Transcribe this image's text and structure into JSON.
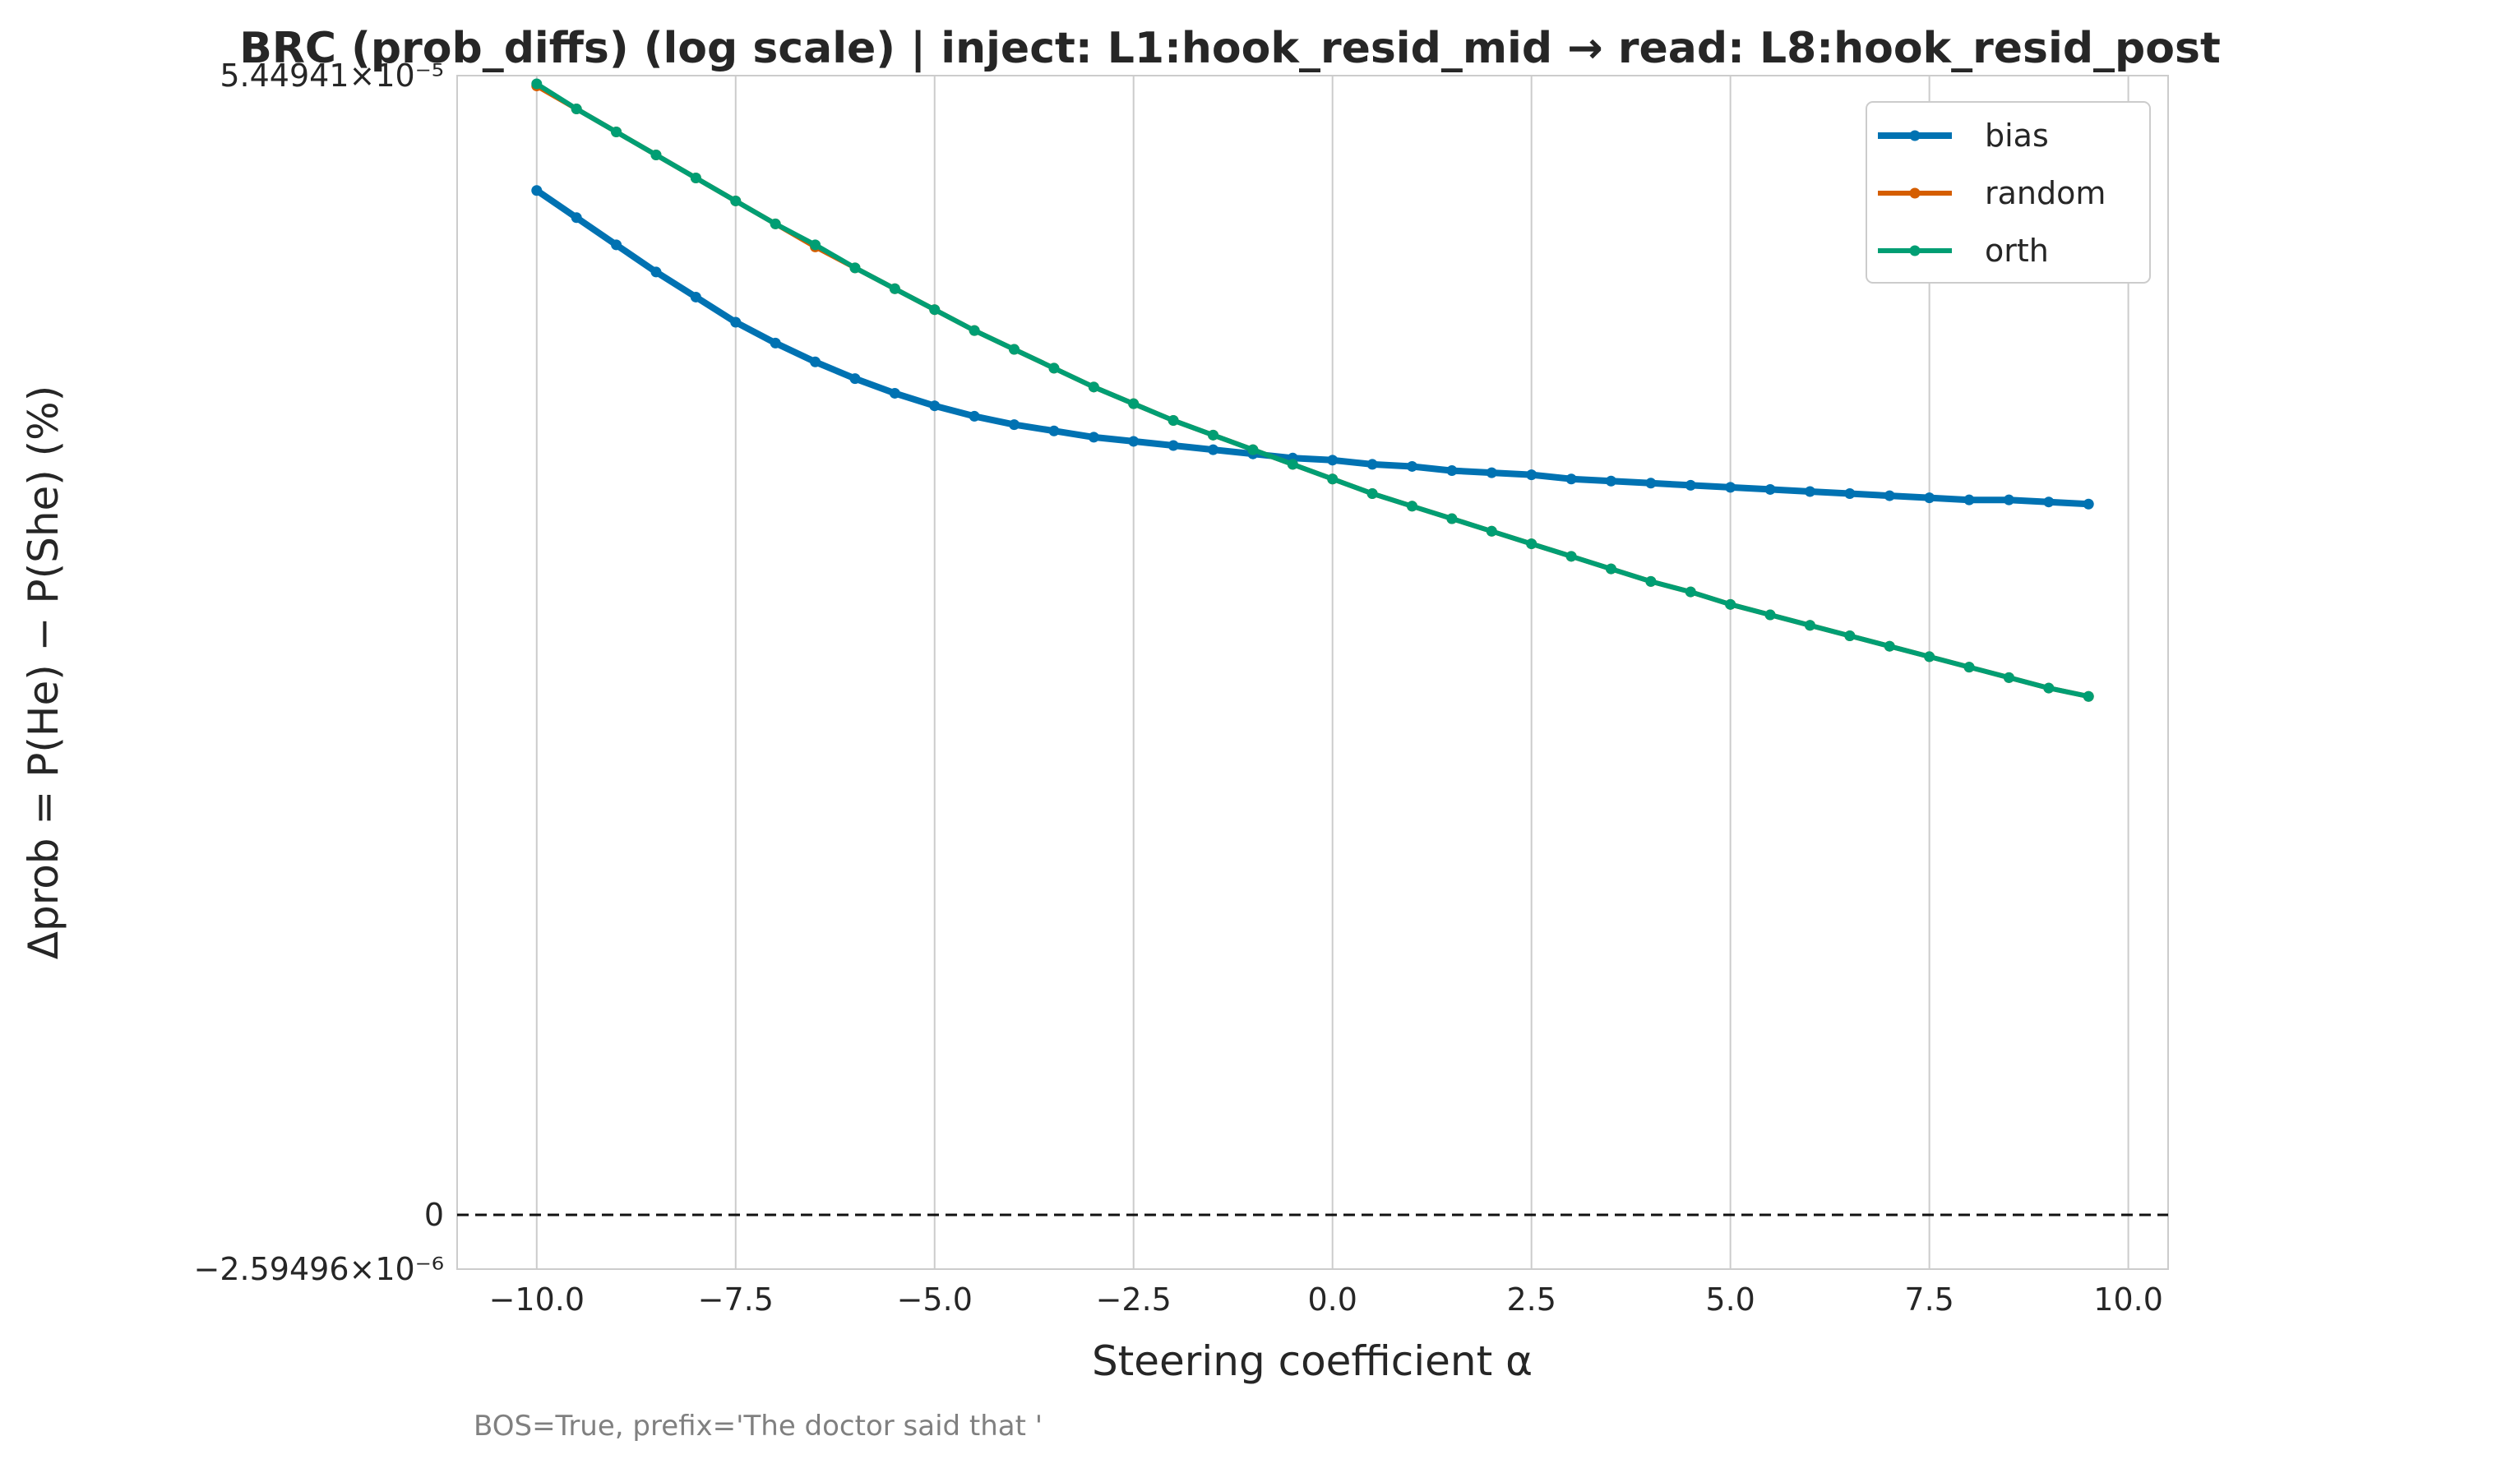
{
  "chart_data": {
    "type": "line",
    "title": "BRC (prob_diffs) (log scale) | inject: L1:hook_resid_mid → read: L8:hook_resid_post",
    "xlabel": "Steering coefficient α",
    "ylabel": "Δprob = P(He) − P(She) (%)",
    "footer": "BOS=True, prefix='The doctor said that '",
    "xlim": [
      -11,
      10.5
    ],
    "xticks": [
      "−10.0",
      "−7.5",
      "−5.0",
      "−2.5",
      "0.0",
      "2.5",
      "5.0",
      "7.5",
      "10.0"
    ],
    "xtick_values": [
      -10,
      -7.5,
      -5,
      -2.5,
      0,
      2.5,
      5,
      7.5,
      10
    ],
    "ylim": [
      -2.59496e-06,
      5.44941e-05
    ],
    "yscale": "symlog",
    "yticks": [
      {
        "value": 5.44941e-05,
        "label": "5.44941×10⁻⁵"
      },
      {
        "value": 0,
        "label": "0"
      },
      {
        "value": -2.59496e-06,
        "label": "−2.59496×10⁻⁶"
      }
    ],
    "grid": "x",
    "legend": "top-right",
    "reference_line": {
      "y": 0,
      "style": "dashed"
    },
    "x": [
      -10,
      -9.5,
      -9,
      -8.5,
      -8,
      -7.5,
      -7,
      -6.5,
      -6,
      -5.5,
      -5,
      -4.5,
      -4,
      -3.5,
      -3,
      -2.5,
      -2,
      -1.5,
      -1,
      -0.5,
      0,
      0.5,
      1,
      1.5,
      2,
      2.5,
      3,
      3.5,
      4,
      4.5,
      5,
      5.5,
      6,
      6.5,
      7,
      7.5,
      8,
      8.5,
      9,
      9.5
    ],
    "series": [
      {
        "name": "bias",
        "color": "#0072B2",
        "values": [
          4.9e-05,
          4.77e-05,
          4.64e-05,
          4.51e-05,
          4.39e-05,
          4.27e-05,
          4.17e-05,
          4.08e-05,
          4e-05,
          3.93e-05,
          3.87e-05,
          3.82e-05,
          3.78e-05,
          3.75e-05,
          3.72e-05,
          3.7e-05,
          3.68e-05,
          3.66e-05,
          3.64e-05,
          3.62e-05,
          3.61e-05,
          3.59e-05,
          3.58e-05,
          3.56e-05,
          3.55e-05,
          3.54e-05,
          3.52e-05,
          3.51e-05,
          3.5e-05,
          3.49e-05,
          3.48e-05,
          3.47e-05,
          3.46e-05,
          3.45e-05,
          3.44e-05,
          3.43e-05,
          3.42e-05,
          3.42e-05,
          3.41e-05,
          3.4e-05
        ]
      },
      {
        "name": "random",
        "color": "#D55E00",
        "values": [
          5.4e-05,
          5.29e-05,
          5.18e-05,
          5.07e-05,
          4.96e-05,
          4.85e-05,
          4.74e-05,
          4.63e-05,
          4.53e-05,
          4.43e-05,
          4.33e-05,
          4.23e-05,
          4.14e-05,
          4.05e-05,
          3.96e-05,
          3.88e-05,
          3.8e-05,
          3.73e-05,
          3.66e-05,
          3.59e-05,
          3.52e-05,
          3.45e-05,
          3.39e-05,
          3.33e-05,
          3.27e-05,
          3.21e-05,
          3.15e-05,
          3.09e-05,
          3.03e-05,
          2.98e-05,
          2.92e-05,
          2.87e-05,
          2.82e-05,
          2.77e-05,
          2.72e-05,
          2.67e-05,
          2.62e-05,
          2.57e-05,
          2.52e-05,
          2.48e-05
        ]
      },
      {
        "name": "orth",
        "color": "#009E73",
        "values": [
          5.41e-05,
          5.29e-05,
          5.18e-05,
          5.07e-05,
          4.96e-05,
          4.85e-05,
          4.74e-05,
          4.64e-05,
          4.53e-05,
          4.43e-05,
          4.33e-05,
          4.23e-05,
          4.14e-05,
          4.05e-05,
          3.96e-05,
          3.88e-05,
          3.8e-05,
          3.73e-05,
          3.66e-05,
          3.59e-05,
          3.52e-05,
          3.45e-05,
          3.39e-05,
          3.33e-05,
          3.27e-05,
          3.21e-05,
          3.15e-05,
          3.09e-05,
          3.03e-05,
          2.98e-05,
          2.92e-05,
          2.87e-05,
          2.82e-05,
          2.77e-05,
          2.72e-05,
          2.67e-05,
          2.62e-05,
          2.57e-05,
          2.52e-05,
          2.48e-05
        ]
      }
    ]
  }
}
